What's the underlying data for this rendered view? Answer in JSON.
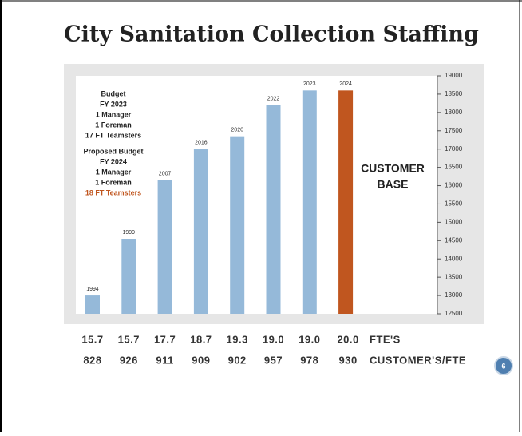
{
  "chart_data": {
    "type": "bar",
    "title": "City Sanitation Collection Staffing",
    "categories": [
      "1994",
      "1999",
      "2007",
      "2016",
      "2020",
      "2022",
      "2023",
      "2024"
    ],
    "values": [
      13000,
      14550,
      16150,
      17000,
      17350,
      18200,
      18600,
      18600
    ],
    "colors": [
      "#95b9d9",
      "#95b9d9",
      "#95b9d9",
      "#95b9d9",
      "#95b9d9",
      "#95b9d9",
      "#95b9d9",
      "#c0561f"
    ],
    "ylim": [
      12500,
      19000
    ],
    "yticks": [
      12500,
      13000,
      13500,
      14000,
      14500,
      15000,
      15500,
      16000,
      16500,
      17000,
      17500,
      18000,
      18500,
      19000
    ],
    "annotations": [
      "Budget",
      "FY 2023",
      "1 Manager",
      "1 Foreman",
      "17 FT Teamsters",
      "Proposed Budget",
      "FY 2024",
      "1 Manager",
      "1 Foreman",
      "18 FT Teamsters"
    ],
    "axis_label": [
      "CUSTOMER",
      "BASE"
    ]
  },
  "table": {
    "rows": [
      {
        "cells": [
          "15.7",
          "15.7",
          "17.7",
          "18.7",
          "19.3",
          "19.0",
          "19.0",
          "20.0"
        ],
        "label": "FTE'S"
      },
      {
        "cells": [
          "828",
          "926",
          "911",
          "909",
          "902",
          "957",
          "978",
          "930"
        ],
        "label": "CUSTOMER'S/FTE"
      }
    ]
  },
  "page_number": "6"
}
